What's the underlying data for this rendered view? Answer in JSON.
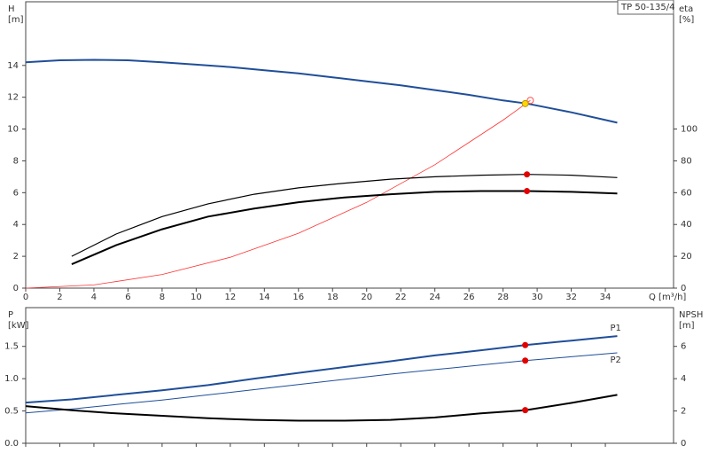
{
  "chart_data": [
    {
      "type": "line",
      "title": "TP 50-135/4",
      "ylabel": "H",
      "yunit": "[m]",
      "y2label": "eta",
      "y2unit": "[%]",
      "xlabel": "Q [m³/h]",
      "xlim": [
        0,
        38
      ],
      "xticks": [
        0,
        2,
        4,
        6,
        8,
        10,
        12,
        14,
        16,
        18,
        20,
        22,
        24,
        26,
        28,
        30,
        32,
        34
      ],
      "xtick_labels": true,
      "ylim": [
        0,
        18
      ],
      "yticks": [
        0,
        2,
        4,
        6,
        8,
        10,
        12,
        14
      ],
      "y2lim": [
        0,
        180
      ],
      "y2ticks": [
        0,
        20,
        40,
        60,
        80,
        100
      ],
      "series": [
        {
          "style": "line",
          "color": "#1f4e99",
          "width": 2,
          "x": [
            0,
            2,
            4,
            6,
            8,
            10,
            12,
            14,
            16,
            18,
            20,
            22,
            24,
            26,
            28,
            29.4,
            32,
            34.7
          ],
          "values": [
            14.2,
            14.32,
            14.35,
            14.32,
            14.2,
            14.05,
            13.9,
            13.7,
            13.5,
            13.25,
            13.0,
            12.75,
            12.45,
            12.15,
            11.8,
            11.6,
            11.05,
            10.4
          ]
        },
        {
          "style": "line",
          "color": "#ff3030",
          "width": 0.8,
          "x": [
            0,
            4,
            8,
            12,
            16,
            20,
            24,
            28,
            29.6
          ],
          "values": [
            0,
            0.2,
            0.86,
            1.94,
            3.45,
            5.39,
            7.76,
            10.56,
            11.8
          ]
        },
        {
          "style": "line",
          "color": "#000000",
          "width": 1.2,
          "axis": "y2",
          "x": [
            2.7,
            5.3,
            8,
            10.7,
            13.4,
            16,
            18.7,
            21.4,
            24,
            26.7,
            29.4,
            32,
            34.7
          ],
          "values": [
            20,
            34,
            45,
            53,
            59,
            63,
            66,
            68.5,
            70,
            71,
            71.5,
            71,
            69.5
          ]
        },
        {
          "style": "line",
          "color": "#000000",
          "width": 2,
          "axis": "y2",
          "x": [
            2.7,
            5.3,
            8,
            10.7,
            13.4,
            16,
            18.7,
            21.4,
            24,
            26.7,
            29.4,
            32,
            34.7
          ],
          "values": [
            15,
            27,
            37,
            45,
            50,
            54,
            57,
            59,
            60.5,
            61,
            61,
            60.5,
            59.5
          ]
        },
        {
          "style": "ring",
          "color": "#ff5050",
          "x": [
            29.6
          ],
          "values": [
            11.8
          ]
        },
        {
          "style": "dot",
          "color": "#ffd700",
          "x": [
            29.3
          ],
          "values": [
            11.6
          ]
        },
        {
          "style": "dot",
          "color": "#e00000",
          "axis": "y2",
          "x": [
            29.4,
            29.4
          ],
          "values": [
            71.5,
            61
          ]
        }
      ]
    },
    {
      "type": "line",
      "ylabel": "P",
      "yunit": "[kW]",
      "y2label": "NPSH",
      "y2unit": "[m]",
      "xlim": [
        0,
        38
      ],
      "xticks": [
        0,
        2,
        4,
        6,
        8,
        10,
        12,
        14,
        16,
        18,
        20,
        22,
        24,
        26,
        28,
        30,
        32,
        34
      ],
      "xtick_labels": false,
      "ylim": [
        0,
        2.1
      ],
      "yticks": [
        {
          "value": 0,
          "label": "0.0"
        },
        0.5,
        {
          "value": 1,
          "label": "1.0"
        },
        1.5
      ],
      "y2lim": [
        0,
        8.4
      ],
      "y2ticks": [
        0,
        2,
        4,
        6
      ],
      "series": [
        {
          "name": "P1",
          "style": "line",
          "color": "#1f4e99",
          "width": 2,
          "x": [
            0,
            2.7,
            5.3,
            8,
            10.7,
            13.4,
            16,
            18.7,
            21.4,
            24,
            26.7,
            29.3,
            32,
            34.7
          ],
          "values": [
            0.63,
            0.68,
            0.75,
            0.82,
            0.9,
            1.0,
            1.09,
            1.18,
            1.27,
            1.36,
            1.44,
            1.52,
            1.59,
            1.66
          ]
        },
        {
          "name": "P2",
          "style": "line",
          "color": "#1f4e99",
          "width": 1,
          "x": [
            0,
            2.7,
            5.3,
            8,
            10.7,
            13.4,
            16,
            18.7,
            21.4,
            24,
            26.7,
            29.3,
            32,
            34.7
          ],
          "values": [
            0.47,
            0.53,
            0.6,
            0.67,
            0.75,
            0.83,
            0.91,
            0.99,
            1.07,
            1.14,
            1.21,
            1.28,
            1.34,
            1.4
          ]
        },
        {
          "style": "line",
          "color": "#000000",
          "width": 2,
          "axis": "y2",
          "x": [
            0,
            2.7,
            5.3,
            8,
            10.7,
            13.4,
            16,
            18.7,
            21.4,
            24,
            26.7,
            29.3,
            32,
            34.7
          ],
          "values": [
            2.3,
            2.05,
            1.85,
            1.7,
            1.55,
            1.45,
            1.4,
            1.4,
            1.45,
            1.6,
            1.85,
            2.05,
            2.5,
            3.0
          ]
        },
        {
          "style": "dot",
          "color": "#e00000",
          "x": [
            29.3,
            29.3
          ],
          "values": [
            1.52,
            1.28
          ]
        },
        {
          "style": "dot",
          "color": "#e00000",
          "axis": "y2",
          "x": [
            29.3
          ],
          "values": [
            2.05
          ]
        }
      ]
    }
  ]
}
